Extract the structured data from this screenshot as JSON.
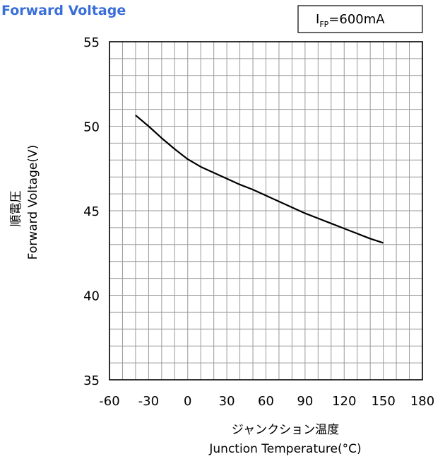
{
  "chart_data": {
    "type": "line",
    "title": "Forward Voltage",
    "xlabel_ja": "ジャンクション温度",
    "xlabel": "Junction Temperature(°C)",
    "ylabel_ja": "順電圧",
    "ylabel": "Forward Voltage(V)",
    "legend": {
      "base": "I",
      "sub": "FP",
      "rest": "=600mA",
      "placement": "top-right"
    },
    "xlim": [
      -60,
      180
    ],
    "ylim": [
      35,
      55
    ],
    "x_ticks": [
      -60,
      -30,
      0,
      30,
      60,
      90,
      120,
      150,
      180
    ],
    "y_ticks": [
      35,
      40,
      45,
      50,
      55
    ],
    "grid": {
      "x_minor_step": 10,
      "y_minor_step": 1,
      "visible": true
    },
    "series": [
      {
        "x": [
          -40,
          -30,
          -20,
          -10,
          0,
          10,
          20,
          30,
          40,
          50,
          60,
          70,
          80,
          90,
          100,
          110,
          120,
          130,
          140,
          150
        ],
        "y": [
          50.65,
          50.0,
          49.3,
          48.65,
          48.05,
          47.6,
          47.25,
          46.9,
          46.55,
          46.25,
          45.9,
          45.55,
          45.2,
          44.85,
          44.55,
          44.25,
          43.95,
          43.65,
          43.35,
          43.1
        ]
      }
    ]
  }
}
